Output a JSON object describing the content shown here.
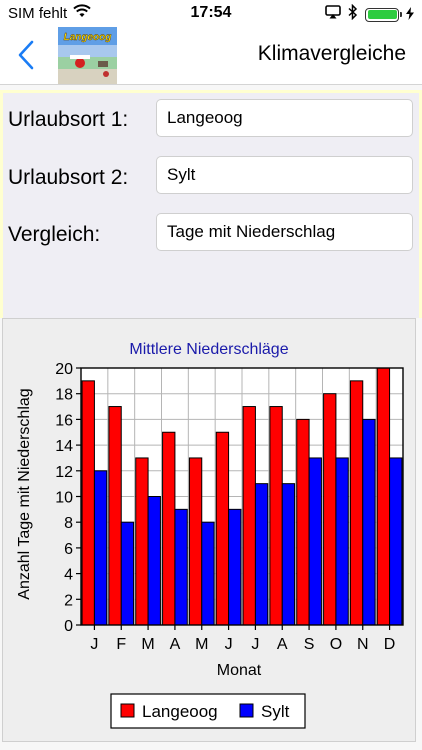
{
  "status_bar": {
    "carrier": "SIM fehlt",
    "time": "17:54",
    "icons": [
      "wifi-icon",
      "screen-mirroring-icon",
      "bluetooth-icon",
      "battery-icon",
      "charging-icon"
    ]
  },
  "nav": {
    "title": "Klimavergleiche",
    "thumbnail_caption": "Langeoog"
  },
  "form": {
    "rows": [
      {
        "label": "Urlaubsort 1:",
        "value": "Langeoog"
      },
      {
        "label": "Urlaubsort 2:",
        "value": "Sylt"
      },
      {
        "label": "Vergleich:",
        "value": "Tage mit Niederschlag"
      }
    ]
  },
  "colors": {
    "series1": "#ff0000",
    "series2": "#0000ff",
    "title": "#1a1aaa",
    "back": "#1a7cf5"
  },
  "chart_data": {
    "type": "bar",
    "title": "Mittlere Niederschläge",
    "xlabel": "Monat",
    "ylabel": "Anzahl Tage mit Niederschlag",
    "ylim": [
      0,
      20
    ],
    "y_ticks": [
      0,
      2,
      4,
      6,
      8,
      10,
      12,
      14,
      16,
      18,
      20
    ],
    "grid": true,
    "legend_position": "bottom",
    "categories": [
      "J",
      "F",
      "M",
      "A",
      "M",
      "J",
      "J",
      "A",
      "S",
      "O",
      "N",
      "D"
    ],
    "series": [
      {
        "name": "Langeoog",
        "values": [
          19,
          17,
          13,
          15,
          13,
          15,
          17,
          17,
          16,
          18,
          19,
          20
        ]
      },
      {
        "name": "Sylt",
        "values": [
          12,
          8,
          10,
          9,
          8,
          9,
          11,
          11,
          13,
          13,
          16,
          13
        ]
      }
    ]
  }
}
